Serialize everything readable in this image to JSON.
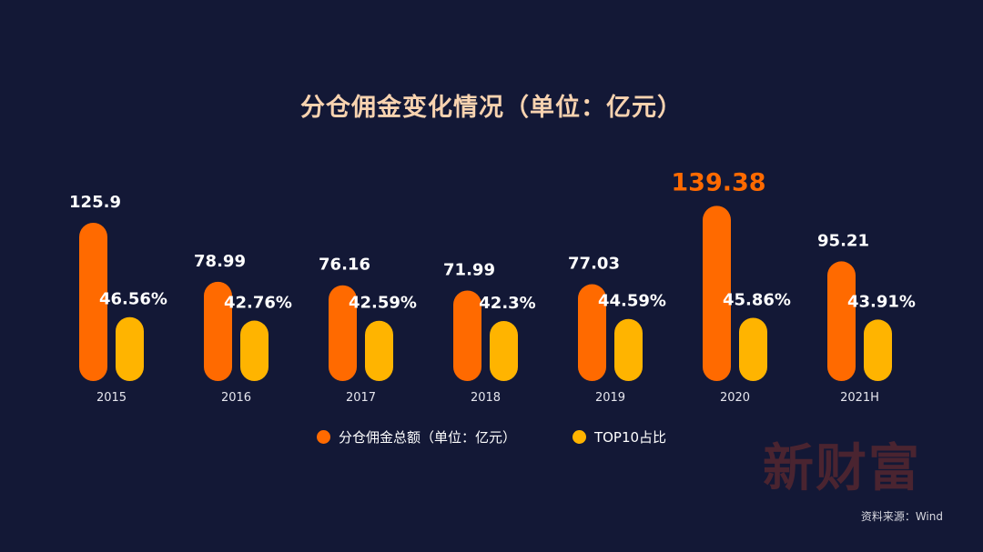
{
  "chart_data": {
    "type": "bar",
    "title": "分仓佣金变化情况（单位：亿元）",
    "categories": [
      "2015",
      "2016",
      "2017",
      "2018",
      "2019",
      "2020",
      "2021H"
    ],
    "series": [
      {
        "name": "分仓佣金总额（单位：亿元）",
        "color": "#ff6a00",
        "values": [
          125.9,
          78.99,
          76.16,
          71.99,
          77.03,
          139.38,
          95.21
        ],
        "labels": [
          "125.9",
          "78.99",
          "76.16",
          "71.99",
          "77.03",
          "139.38",
          "95.21"
        ]
      },
      {
        "name": "TOP10占比",
        "color": "#ffb400",
        "values": [
          46.56,
          42.76,
          42.59,
          42.3,
          44.59,
          45.86,
          43.91
        ],
        "labels": [
          "46.56%",
          "42.76%",
          "42.59%",
          "42.3%",
          "44.59%",
          "45.86%",
          "43.91%"
        ]
      }
    ],
    "highlight": {
      "category": "2020",
      "color": "#ff6a00"
    },
    "grid": false,
    "legend_position": "bottom"
  },
  "watermark": "新财富",
  "source": "资料来源：Wind"
}
